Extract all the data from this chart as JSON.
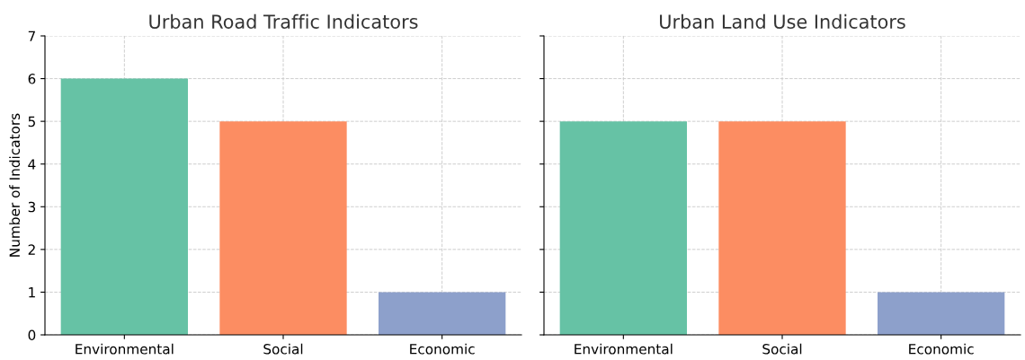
{
  "chart_data": [
    {
      "type": "bar",
      "title": "Urban Road Traffic Indicators",
      "ylabel": "Number of Indicators",
      "categories": [
        "Environmental",
        "Social",
        "Economic"
      ],
      "values": [
        6,
        5,
        1
      ],
      "colors": [
        "#66c2a5",
        "#fc8d62",
        "#8da0cb"
      ],
      "ylim": [
        0,
        7
      ],
      "yticks": [
        0,
        1,
        2,
        3,
        4,
        5,
        6,
        7
      ],
      "grid": true
    },
    {
      "type": "bar",
      "title": "Urban Land Use Indicators",
      "categories": [
        "Environmental",
        "Social",
        "Economic"
      ],
      "values": [
        5,
        5,
        1
      ],
      "colors": [
        "#66c2a5",
        "#fc8d62",
        "#8da0cb"
      ],
      "ylim": [
        0,
        7
      ],
      "yticks": [
        0,
        1,
        2,
        3,
        4,
        5,
        6,
        7
      ],
      "grid": true,
      "tick_labels": "x"
    }
  ]
}
